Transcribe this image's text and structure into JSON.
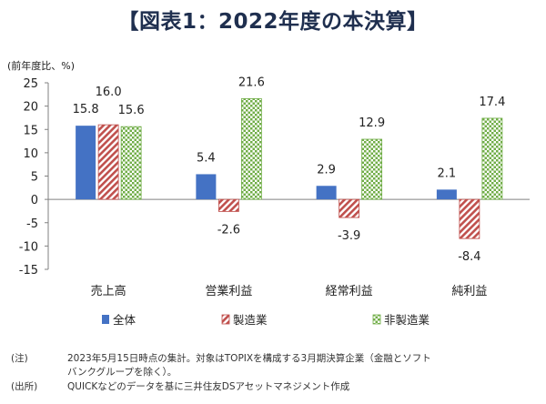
{
  "figure_title": "【図表1：2022年度の本決算】",
  "unit_label": "(前年度比、%)",
  "chart_data": {
    "type": "bar",
    "categories": [
      "売上高",
      "営業利益",
      "経常利益",
      "純利益"
    ],
    "series": [
      {
        "name": "全体",
        "values": [
          15.8,
          5.4,
          2.9,
          2.1
        ],
        "color": "#4472c4",
        "pattern": "solid"
      },
      {
        "name": "製造業",
        "values": [
          16.0,
          -2.6,
          -3.9,
          -8.4
        ],
        "color": "#c0504d",
        "pattern": "diagonal-stripes"
      },
      {
        "name": "非製造業",
        "values": [
          15.6,
          21.6,
          12.9,
          17.4
        ],
        "color": "#70ad47",
        "pattern": "checkerboard"
      }
    ],
    "data_labels": [
      [
        "15.8",
        "5.4",
        "2.9",
        "2.1"
      ],
      [
        "16.0",
        "-2.6",
        "-3.9",
        "-8.4"
      ],
      [
        "15.6",
        "21.6",
        "12.9",
        "17.4"
      ]
    ],
    "ylim": [
      -15,
      25
    ],
    "yticks": [
      "25",
      "20",
      "15",
      "10",
      "5",
      "0",
      "-5",
      "-10",
      "-15"
    ],
    "ytick_values": [
      25,
      20,
      15,
      10,
      5,
      0,
      -5,
      -10,
      -15
    ],
    "legend_position": "bottom",
    "grid": false
  },
  "notes": [
    {
      "tag": "(注)",
      "text": "2023年5月15日時点の集計。対象はTOPIXを構成する3月期決算企業（金融とソフト"
    },
    {
      "tag": "",
      "text": "バンクグループを除く）。"
    },
    {
      "tag": "(出所)",
      "text": "QUICKなどのデータを基に三井住友DSアセットマネジメント作成"
    }
  ]
}
